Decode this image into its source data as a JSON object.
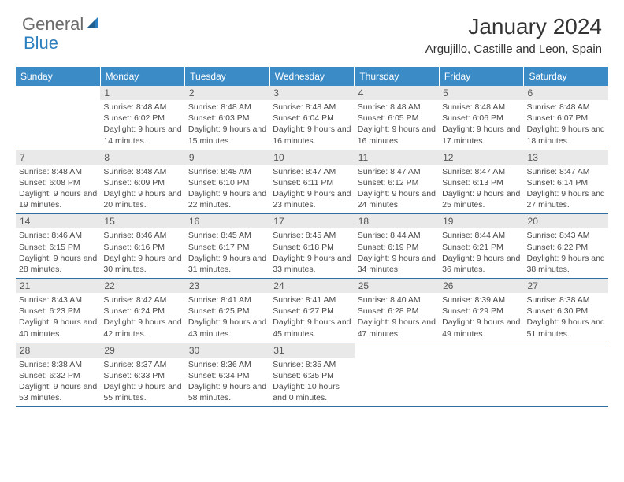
{
  "logo": {
    "text1": "General",
    "text2": "Blue"
  },
  "title": "January 2024",
  "location": "Argujillo, Castille and Leon, Spain",
  "colors": {
    "header_bg": "#3b8bc7",
    "header_text": "#ffffff",
    "daynum_bg": "#e9e9e9",
    "week_border": "#2f6fa3",
    "logo_gray": "#6b6b6b",
    "logo_blue": "#2b7fbf"
  },
  "dow": [
    "Sunday",
    "Monday",
    "Tuesday",
    "Wednesday",
    "Thursday",
    "Friday",
    "Saturday"
  ],
  "weeks": [
    [
      {
        "num": "",
        "sunrise": "",
        "sunset": "",
        "daylight": ""
      },
      {
        "num": "1",
        "sunrise": "Sunrise: 8:48 AM",
        "sunset": "Sunset: 6:02 PM",
        "daylight": "Daylight: 9 hours and 14 minutes."
      },
      {
        "num": "2",
        "sunrise": "Sunrise: 8:48 AM",
        "sunset": "Sunset: 6:03 PM",
        "daylight": "Daylight: 9 hours and 15 minutes."
      },
      {
        "num": "3",
        "sunrise": "Sunrise: 8:48 AM",
        "sunset": "Sunset: 6:04 PM",
        "daylight": "Daylight: 9 hours and 16 minutes."
      },
      {
        "num": "4",
        "sunrise": "Sunrise: 8:48 AM",
        "sunset": "Sunset: 6:05 PM",
        "daylight": "Daylight: 9 hours and 16 minutes."
      },
      {
        "num": "5",
        "sunrise": "Sunrise: 8:48 AM",
        "sunset": "Sunset: 6:06 PM",
        "daylight": "Daylight: 9 hours and 17 minutes."
      },
      {
        "num": "6",
        "sunrise": "Sunrise: 8:48 AM",
        "sunset": "Sunset: 6:07 PM",
        "daylight": "Daylight: 9 hours and 18 minutes."
      }
    ],
    [
      {
        "num": "7",
        "sunrise": "Sunrise: 8:48 AM",
        "sunset": "Sunset: 6:08 PM",
        "daylight": "Daylight: 9 hours and 19 minutes."
      },
      {
        "num": "8",
        "sunrise": "Sunrise: 8:48 AM",
        "sunset": "Sunset: 6:09 PM",
        "daylight": "Daylight: 9 hours and 20 minutes."
      },
      {
        "num": "9",
        "sunrise": "Sunrise: 8:48 AM",
        "sunset": "Sunset: 6:10 PM",
        "daylight": "Daylight: 9 hours and 22 minutes."
      },
      {
        "num": "10",
        "sunrise": "Sunrise: 8:47 AM",
        "sunset": "Sunset: 6:11 PM",
        "daylight": "Daylight: 9 hours and 23 minutes."
      },
      {
        "num": "11",
        "sunrise": "Sunrise: 8:47 AM",
        "sunset": "Sunset: 6:12 PM",
        "daylight": "Daylight: 9 hours and 24 minutes."
      },
      {
        "num": "12",
        "sunrise": "Sunrise: 8:47 AM",
        "sunset": "Sunset: 6:13 PM",
        "daylight": "Daylight: 9 hours and 25 minutes."
      },
      {
        "num": "13",
        "sunrise": "Sunrise: 8:47 AM",
        "sunset": "Sunset: 6:14 PM",
        "daylight": "Daylight: 9 hours and 27 minutes."
      }
    ],
    [
      {
        "num": "14",
        "sunrise": "Sunrise: 8:46 AM",
        "sunset": "Sunset: 6:15 PM",
        "daylight": "Daylight: 9 hours and 28 minutes."
      },
      {
        "num": "15",
        "sunrise": "Sunrise: 8:46 AM",
        "sunset": "Sunset: 6:16 PM",
        "daylight": "Daylight: 9 hours and 30 minutes."
      },
      {
        "num": "16",
        "sunrise": "Sunrise: 8:45 AM",
        "sunset": "Sunset: 6:17 PM",
        "daylight": "Daylight: 9 hours and 31 minutes."
      },
      {
        "num": "17",
        "sunrise": "Sunrise: 8:45 AM",
        "sunset": "Sunset: 6:18 PM",
        "daylight": "Daylight: 9 hours and 33 minutes."
      },
      {
        "num": "18",
        "sunrise": "Sunrise: 8:44 AM",
        "sunset": "Sunset: 6:19 PM",
        "daylight": "Daylight: 9 hours and 34 minutes."
      },
      {
        "num": "19",
        "sunrise": "Sunrise: 8:44 AM",
        "sunset": "Sunset: 6:21 PM",
        "daylight": "Daylight: 9 hours and 36 minutes."
      },
      {
        "num": "20",
        "sunrise": "Sunrise: 8:43 AM",
        "sunset": "Sunset: 6:22 PM",
        "daylight": "Daylight: 9 hours and 38 minutes."
      }
    ],
    [
      {
        "num": "21",
        "sunrise": "Sunrise: 8:43 AM",
        "sunset": "Sunset: 6:23 PM",
        "daylight": "Daylight: 9 hours and 40 minutes."
      },
      {
        "num": "22",
        "sunrise": "Sunrise: 8:42 AM",
        "sunset": "Sunset: 6:24 PM",
        "daylight": "Daylight: 9 hours and 42 minutes."
      },
      {
        "num": "23",
        "sunrise": "Sunrise: 8:41 AM",
        "sunset": "Sunset: 6:25 PM",
        "daylight": "Daylight: 9 hours and 43 minutes."
      },
      {
        "num": "24",
        "sunrise": "Sunrise: 8:41 AM",
        "sunset": "Sunset: 6:27 PM",
        "daylight": "Daylight: 9 hours and 45 minutes."
      },
      {
        "num": "25",
        "sunrise": "Sunrise: 8:40 AM",
        "sunset": "Sunset: 6:28 PM",
        "daylight": "Daylight: 9 hours and 47 minutes."
      },
      {
        "num": "26",
        "sunrise": "Sunrise: 8:39 AM",
        "sunset": "Sunset: 6:29 PM",
        "daylight": "Daylight: 9 hours and 49 minutes."
      },
      {
        "num": "27",
        "sunrise": "Sunrise: 8:38 AM",
        "sunset": "Sunset: 6:30 PM",
        "daylight": "Daylight: 9 hours and 51 minutes."
      }
    ],
    [
      {
        "num": "28",
        "sunrise": "Sunrise: 8:38 AM",
        "sunset": "Sunset: 6:32 PM",
        "daylight": "Daylight: 9 hours and 53 minutes."
      },
      {
        "num": "29",
        "sunrise": "Sunrise: 8:37 AM",
        "sunset": "Sunset: 6:33 PM",
        "daylight": "Daylight: 9 hours and 55 minutes."
      },
      {
        "num": "30",
        "sunrise": "Sunrise: 8:36 AM",
        "sunset": "Sunset: 6:34 PM",
        "daylight": "Daylight: 9 hours and 58 minutes."
      },
      {
        "num": "31",
        "sunrise": "Sunrise: 8:35 AM",
        "sunset": "Sunset: 6:35 PM",
        "daylight": "Daylight: 10 hours and 0 minutes."
      },
      {
        "num": "",
        "sunrise": "",
        "sunset": "",
        "daylight": ""
      },
      {
        "num": "",
        "sunrise": "",
        "sunset": "",
        "daylight": ""
      },
      {
        "num": "",
        "sunrise": "",
        "sunset": "",
        "daylight": ""
      }
    ]
  ]
}
